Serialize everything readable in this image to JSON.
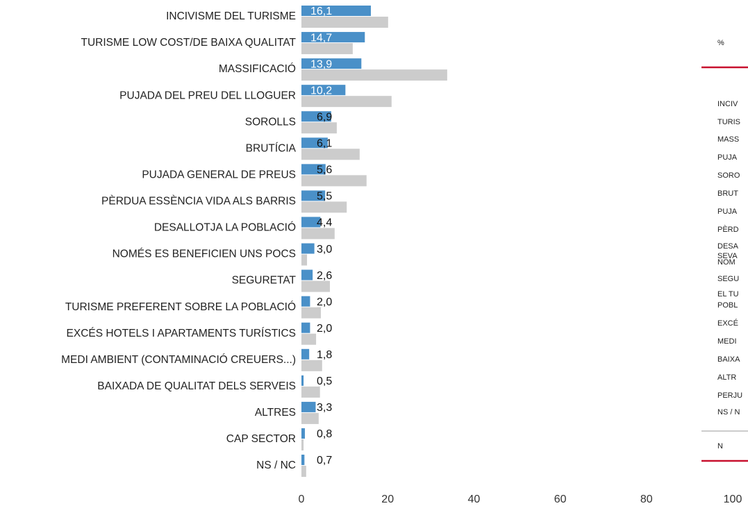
{
  "chart_data": {
    "type": "hbar",
    "categories": [
      "INCIVISME DEL TURISME",
      "TURISME LOW COST/DE BAIXA QUALITAT",
      "MASSIFICACIÓ",
      "PUJADA DEL PREU DEL LLOGUER",
      "SOROLLS",
      "BRUTÍCIA",
      "PUJADA GENERAL DE PREUS",
      "PÈRDUA ESSÈNCIA VIDA ALS BARRIS",
      "DESALLOTJA LA POBLACIÓ",
      "NOMÉS ES BENEFICIEN UNS POCS",
      "SEGURETAT",
      "TURISME PREFERENT SOBRE LA POBLACIÓ",
      "EXCÉS HOTELS I APARTAMENTS TURÍSTICS",
      "MEDI  AMBIENT (CONTAMINACIÓ CREUERS...)",
      "BAIXADA DE QUALITAT DELS SERVEIS",
      "ALTRES",
      "CAP SECTOR",
      "NS / NC"
    ],
    "series": [
      {
        "color": "#4a90c8",
        "values": [
          16.1,
          14.7,
          13.9,
          10.2,
          6.9,
          6.1,
          5.6,
          5.5,
          4.4,
          3.0,
          2.6,
          2.0,
          2.0,
          1.8,
          0.5,
          3.3,
          0.8,
          0.7
        ],
        "value_labels": [
          "16,1",
          "14,7",
          "13,9",
          "10,2",
          "6,9",
          "6,1",
          "5,6",
          "5,5",
          "4,4",
          "3,0",
          "2,6",
          "2,0",
          "2,0",
          "1,8",
          "0,5",
          "3,3",
          "0,8",
          "0,7"
        ]
      },
      {
        "color": "#cccccc",
        "values": [
          20.1,
          11.9,
          33.8,
          20.9,
          8.2,
          13.5,
          15.1,
          10.5,
          7.7,
          1.3,
          6.6,
          4.5,
          3.4,
          4.8,
          4.3,
          4.0,
          0.5,
          1.1
        ]
      }
    ],
    "xlim": [
      0,
      100
    ],
    "xticks": [
      0,
      20,
      40,
      60,
      80,
      100
    ]
  },
  "table": {
    "unit": "%",
    "rows": [
      "INCIV",
      "TURIS",
      "MASS",
      "PUJA",
      "SORO",
      "BRUT",
      "PUJA",
      "PÈRD",
      "DESA",
      "SEVA",
      "NOM",
      "SEGU",
      "EL TU",
      "POBL",
      "EXCÉ",
      "MEDI",
      "BAIXA",
      "ALTR",
      "PERJU",
      "NS / N"
    ],
    "footer": "N",
    "accent": "#c8102e"
  }
}
